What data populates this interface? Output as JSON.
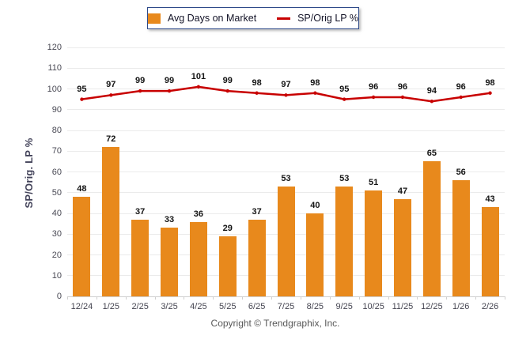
{
  "legend": {
    "bar_label": "Avg Days on Market",
    "line_label": "SP/Orig LP %"
  },
  "y_axis_title": "SP/Orig. LP %",
  "footer": "Copyright © Trendgraphix, Inc.",
  "colors": {
    "bar": "#E8891C",
    "line": "#C80000",
    "grid": "#ebebeb",
    "legend_border": "#2e4a89"
  },
  "chart_data": {
    "type": "bar",
    "categories": [
      "12/24",
      "1/25",
      "2/25",
      "3/25",
      "4/25",
      "5/25",
      "6/25",
      "7/25",
      "8/25",
      "9/25",
      "10/25",
      "11/25",
      "12/25",
      "1/26",
      "2/26"
    ],
    "series": [
      {
        "name": "Avg Days on Market",
        "type": "bar",
        "values": [
          48,
          72,
          37,
          33,
          36,
          29,
          37,
          53,
          40,
          53,
          51,
          47,
          65,
          56,
          43
        ]
      },
      {
        "name": "SP/Orig LP %",
        "type": "line",
        "values": [
          95,
          97,
          99,
          99,
          101,
          99,
          98,
          97,
          98,
          95,
          96,
          96,
          94,
          96,
          98
        ]
      }
    ],
    "title": "",
    "xlabel": "",
    "ylabel": "SP/Orig. LP %",
    "ylim": [
      0,
      120
    ],
    "ytick_step": 10,
    "grid": true,
    "legend_position": "top",
    "data_labels": true
  }
}
